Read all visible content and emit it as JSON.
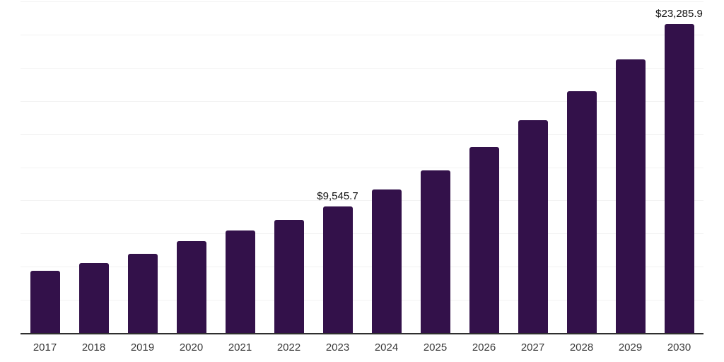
{
  "chart_data": {
    "type": "bar",
    "title": "",
    "xlabel": "",
    "ylabel": "",
    "categories": [
      "2017",
      "2018",
      "2019",
      "2020",
      "2021",
      "2022",
      "2023",
      "2024",
      "2025",
      "2026",
      "2027",
      "2028",
      "2029",
      "2030"
    ],
    "values": [
      4690,
      5280,
      5970,
      6930,
      7730,
      8530,
      9545.7,
      10820,
      12260,
      14020,
      16040,
      18230,
      20630,
      23285.9
    ],
    "point_labels": [
      "",
      "",
      "",
      "",
      "",
      "",
      "$9,545.7",
      "",
      "",
      "",
      "",
      "",
      "",
      "$23,285.9"
    ],
    "ylim": [
      0,
      25000
    ],
    "gridline_step": 2500,
    "grid": "horizontal",
    "legend": "none",
    "bar_color": "#33114a",
    "axis_line_color": "#2f2f2f",
    "gridline_color": "#f2f2f2",
    "tick_label_color": "#3a3a3a",
    "value_label_color": "#111111"
  }
}
